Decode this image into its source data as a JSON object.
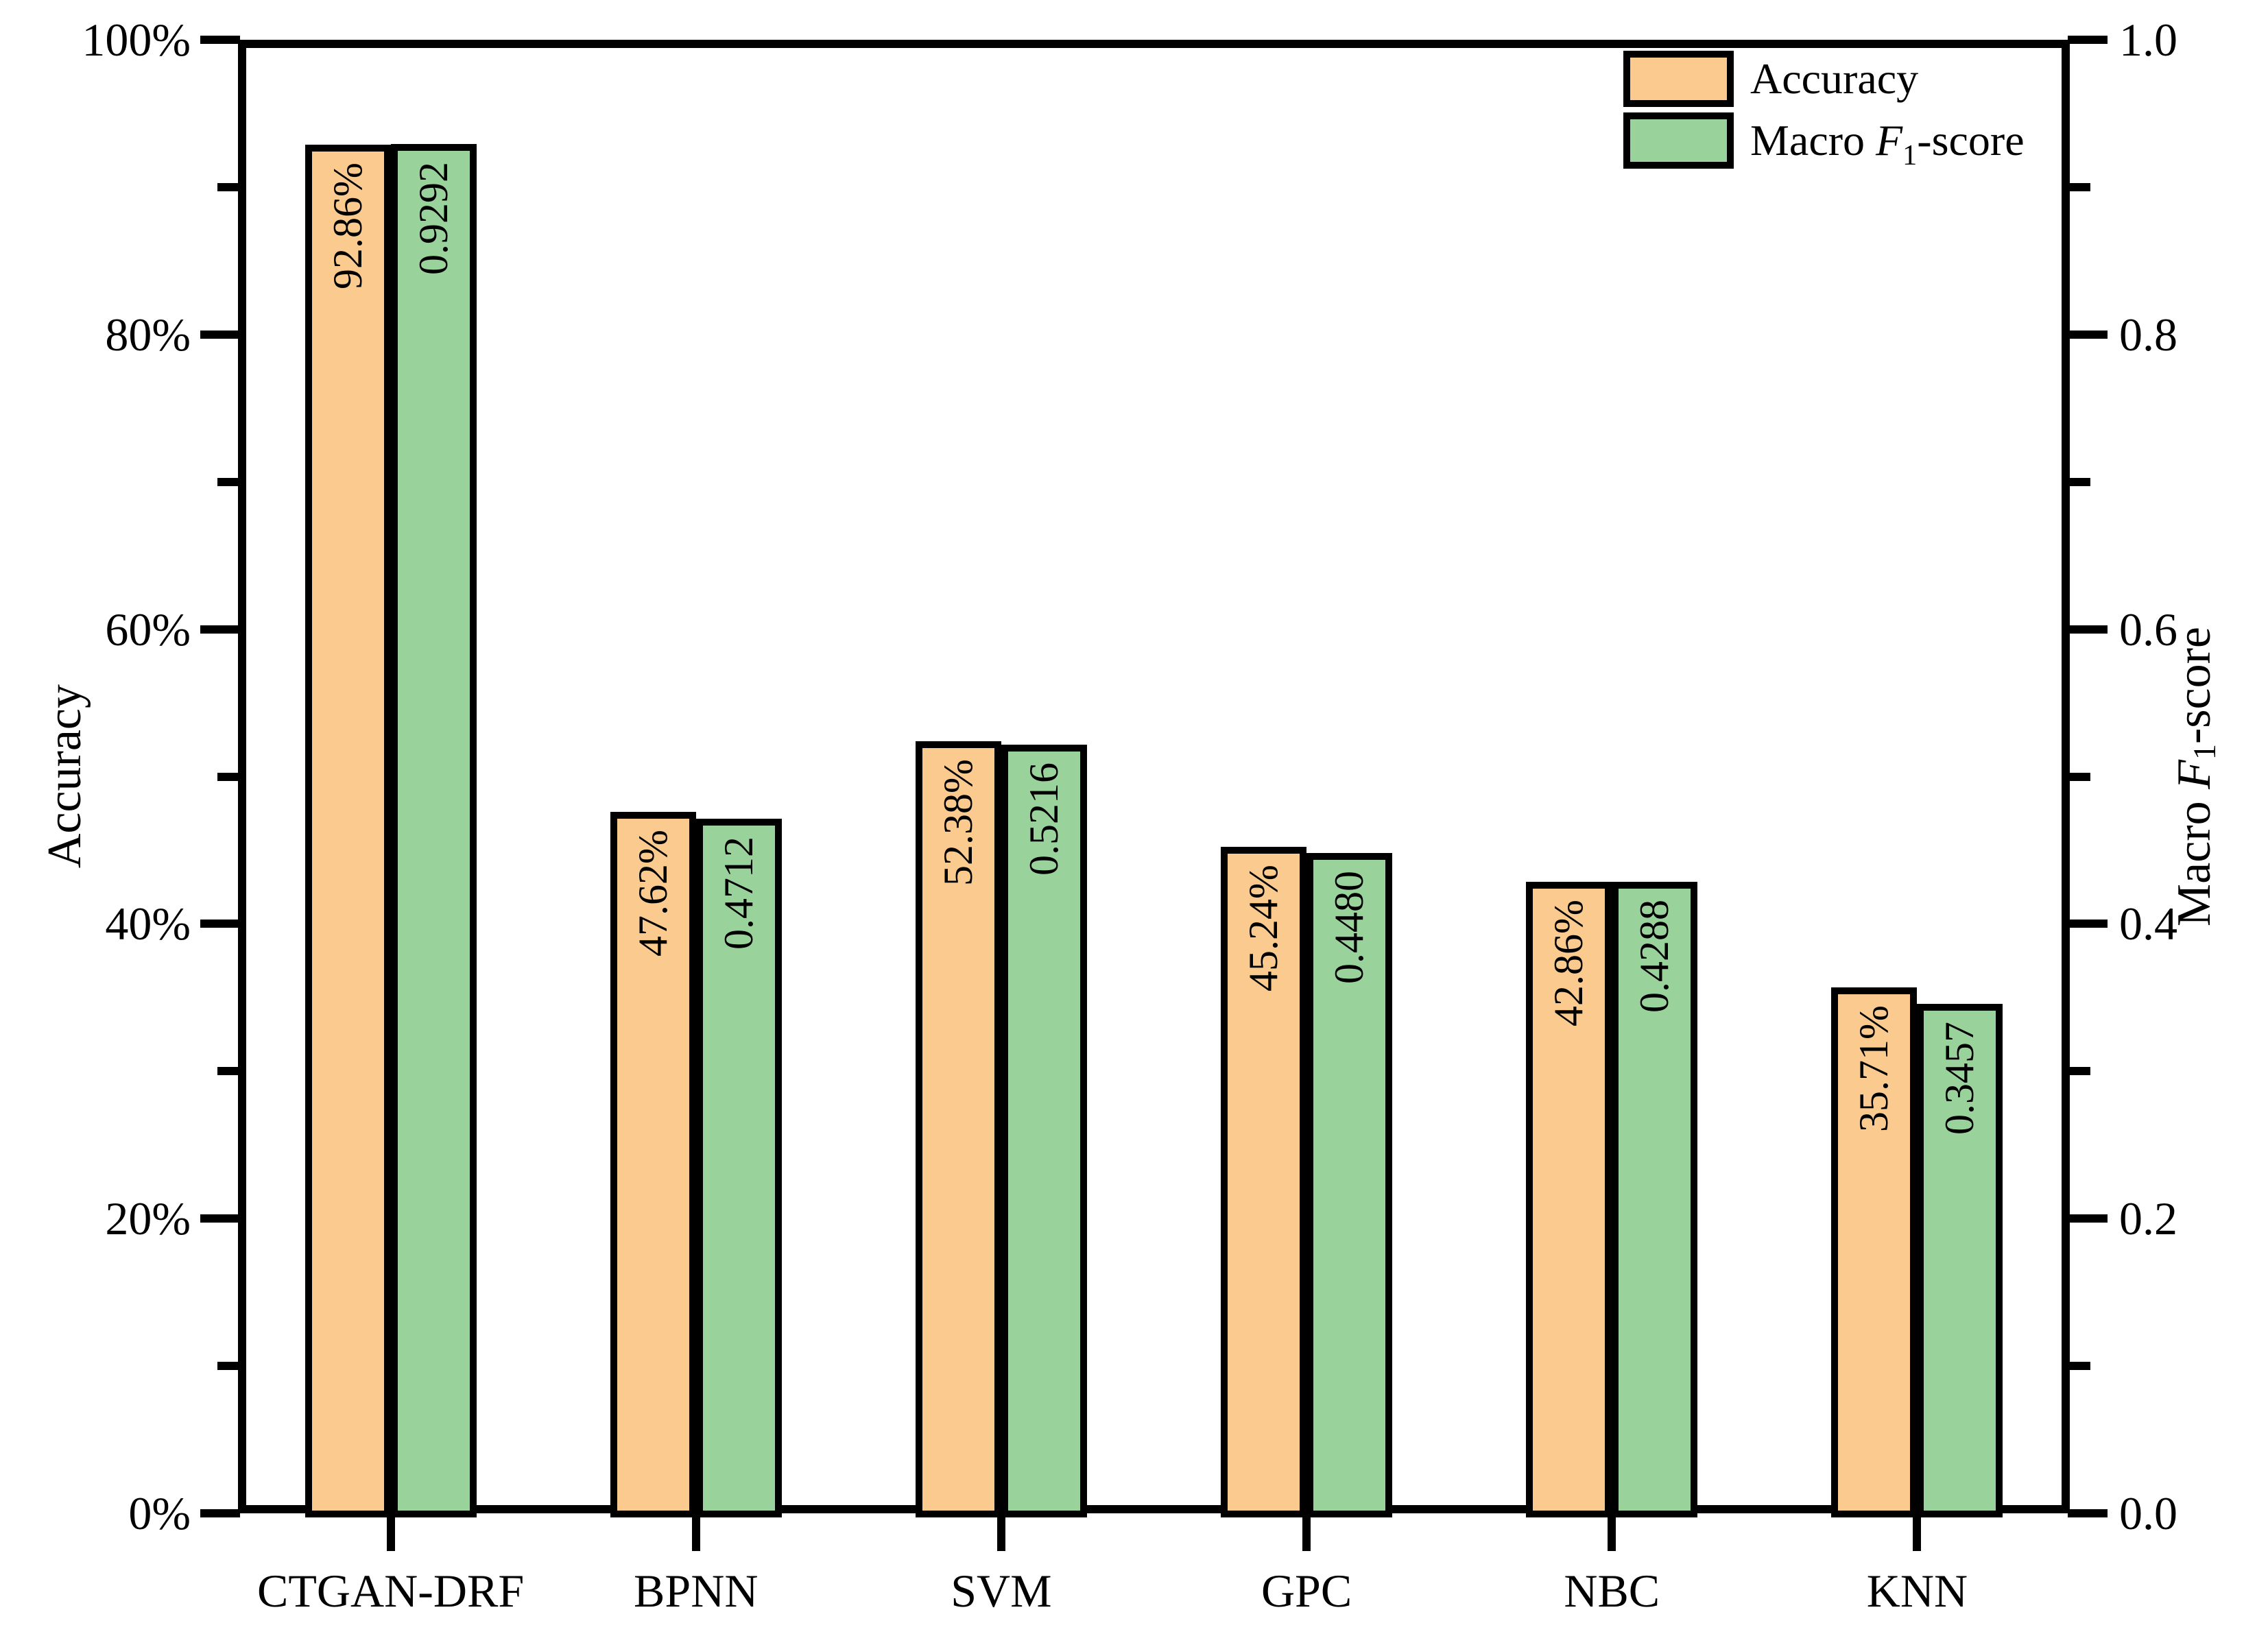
{
  "chart_data": {
    "type": "bar",
    "categories": [
      "CTGAN-DRF",
      "BPNN",
      "SVM",
      "GPC",
      "NBC",
      "KNN"
    ],
    "series": [
      {
        "name": "Accuracy",
        "axis": "left",
        "color": "#FACA8F",
        "values_percent": [
          92.86,
          47.62,
          52.38,
          45.24,
          42.86,
          35.71
        ],
        "labels": [
          "92.86%",
          "47.62%",
          "52.38%",
          "45.24%",
          "42.86%",
          "35.71%"
        ]
      },
      {
        "name": "Macro F1-score",
        "axis": "right",
        "color": "#9AD29B",
        "values": [
          0.9292,
          0.4712,
          0.5216,
          0.448,
          0.4288,
          0.3457
        ],
        "labels": [
          "0.9292",
          "0.4712",
          "0.5216",
          "0.4480",
          "0.4288",
          "0.3457"
        ]
      }
    ],
    "left_axis": {
      "title": "Accuracy",
      "tick_labels": [
        "0%",
        "20%",
        "40%",
        "60%",
        "80%",
        "100%"
      ],
      "range": [
        0,
        100
      ],
      "minor_ticks_every": 10
    },
    "right_axis": {
      "title": "Macro F1-score",
      "tick_labels": [
        "0.0",
        "0.2",
        "0.4",
        "0.6",
        "0.8",
        "1.0"
      ],
      "range": [
        0,
        1
      ],
      "minor_ticks_every": 0.1
    },
    "grid": "off",
    "legend_position": "top-right-inside"
  },
  "axes_titles": {
    "left": "Accuracy",
    "right_prefix": "Macro ",
    "right_symbol": "F",
    "right_sub": "1",
    "right_suffix": "-score"
  },
  "legend": {
    "items": [
      {
        "label": "Accuracy"
      },
      {
        "prefix": "Macro ",
        "symbol": "F",
        "sub": "1",
        "suffix": "-score"
      }
    ]
  }
}
